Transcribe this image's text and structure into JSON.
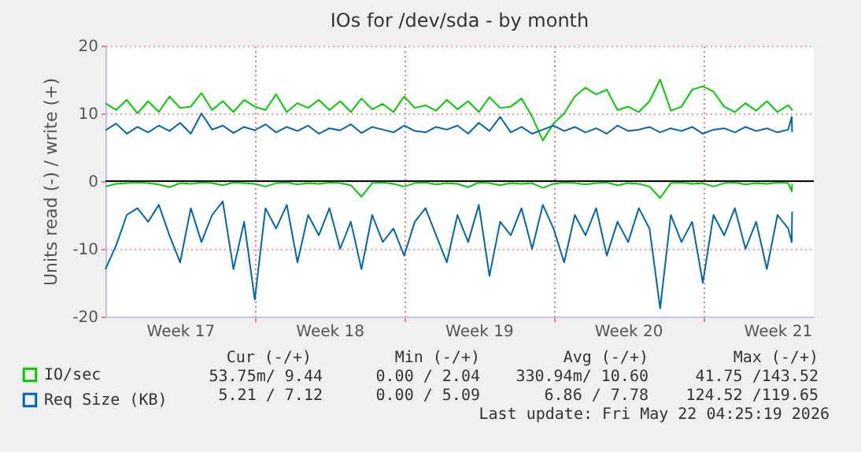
{
  "chart_data": {
    "type": "line",
    "title": "IOs for /dev/sda - by month",
    "ylabel": "Units read (-) / write (+)",
    "x": [
      "2026-04-20T00:00",
      "2026-04-20T12:00",
      "2026-04-21T00:00",
      "2026-04-21T12:00",
      "2026-04-22T00:00",
      "2026-04-22T12:00",
      "2026-04-23T00:00",
      "2026-04-23T12:00",
      "2026-04-24T00:00",
      "2026-04-24T12:00",
      "2026-04-25T00:00",
      "2026-04-25T12:00",
      "2026-04-26T00:00",
      "2026-04-26T12:00",
      "2026-04-27T00:00",
      "2026-04-27T12:00",
      "2026-04-28T00:00",
      "2026-04-28T12:00",
      "2026-04-29T00:00",
      "2026-04-29T12:00",
      "2026-04-30T00:00",
      "2026-04-30T12:00",
      "2026-05-01T00:00",
      "2026-05-01T12:00",
      "2026-05-02T00:00",
      "2026-05-02T12:00",
      "2026-05-03T00:00",
      "2026-05-03T12:00",
      "2026-05-04T00:00",
      "2026-05-04T12:00",
      "2026-05-05T00:00",
      "2026-05-05T12:00",
      "2026-05-06T00:00",
      "2026-05-06T12:00",
      "2026-05-07T00:00",
      "2026-05-07T12:00",
      "2026-05-08T00:00",
      "2026-05-08T12:00",
      "2026-05-09T00:00",
      "2026-05-09T12:00",
      "2026-05-10T00:00",
      "2026-05-10T12:00",
      "2026-05-11T00:00",
      "2026-05-11T12:00",
      "2026-05-12T00:00",
      "2026-05-12T12:00",
      "2026-05-13T00:00",
      "2026-05-13T12:00",
      "2026-05-14T00:00",
      "2026-05-14T12:00",
      "2026-05-15T00:00",
      "2026-05-15T12:00",
      "2026-05-16T00:00",
      "2026-05-16T12:00",
      "2026-05-17T00:00",
      "2026-05-17T12:00",
      "2026-05-18T00:00",
      "2026-05-18T12:00",
      "2026-05-19T00:00",
      "2026-05-19T12:00",
      "2026-05-20T00:00",
      "2026-05-20T12:00",
      "2026-05-21T00:00",
      "2026-05-21T12:00",
      "2026-05-22T00:00",
      "2026-05-22T04:00",
      "2026-05-22T04:25"
    ],
    "series": [
      {
        "name": "IO/sec",
        "color": "#00cc00",
        "values": [
          11.5,
          10.5,
          12,
          10,
          11.8,
          10.2,
          12.5,
          10.8,
          11,
          13,
          10.5,
          11.8,
          10.2,
          12,
          11,
          10.5,
          12.8,
          10.2,
          11.5,
          10.8,
          12,
          10.5,
          11.8,
          10.2,
          12.2,
          10.6,
          11.4,
          10.2,
          12.5,
          10.8,
          11.2,
          10.4,
          12,
          10.6,
          11.8,
          10.2,
          12.4,
          10.8,
          11,
          12.2,
          9.5,
          6,
          8.5,
          10,
          12.5,
          13.8,
          12.8,
          13.5,
          10.5,
          11,
          10.2,
          11.8,
          15,
          10.4,
          11,
          13.5,
          14,
          13.2,
          11,
          10.2,
          11.5,
          10.4,
          11.8,
          10.2,
          11.2,
          10.6,
          10.4
        ]
      },
      {
        "color": "#00cc00",
        "values": [
          -0.8,
          -0.4,
          -0.3,
          -0.2,
          -0.3,
          -0.5,
          -0.9,
          -0.3,
          -0.4,
          -0.2,
          -0.3,
          -0.6,
          -0.2,
          -0.3,
          -0.4,
          -0.8,
          -0.3,
          -0.2,
          -0.5,
          -0.3,
          -0.4,
          -0.2,
          -0.3,
          -0.6,
          -2.3,
          -0.3,
          -0.2,
          -0.4,
          -0.8,
          -0.3,
          -0.2,
          -0.5,
          -0.3,
          -0.4,
          -0.9,
          -0.2,
          -0.3,
          -0.6,
          -0.3,
          -0.4,
          -0.3,
          -1,
          -0.4,
          -0.2,
          -0.3,
          -0.5,
          -0.3,
          -0.2,
          -0.6,
          -0.3,
          -0.4,
          -0.8,
          -2.5,
          -0.3,
          -0.2,
          -0.4,
          -0.3,
          -0.8,
          -0.3,
          -0.2,
          -0.5,
          -0.3,
          -0.4,
          -0.2,
          -0.3,
          -1.5,
          -0.4
        ]
      },
      {
        "name": "Req Size (KB)",
        "color": "#0066b3",
        "values": [
          7.5,
          8.5,
          7,
          8,
          7.2,
          8.2,
          7.4,
          8.6,
          7,
          10,
          7.6,
          8.2,
          7.1,
          8,
          7.5,
          8.4,
          7.2,
          8,
          7.4,
          8.2,
          7,
          7.8,
          7.5,
          8.4,
          7.1,
          8,
          7.6,
          7.2,
          8.2,
          7.4,
          7.2,
          8,
          7.6,
          8.2,
          7,
          8.6,
          7.4,
          9.5,
          7.2,
          8,
          7,
          7.6,
          8.2,
          7.4,
          8,
          7.2,
          7.8,
          7,
          8.2,
          7.4,
          7.6,
          8,
          7.2,
          7.8,
          7.4,
          8,
          7,
          7.6,
          7.8,
          7.2,
          8,
          7.4,
          7.8,
          7.2,
          7.6,
          9.5,
          7.2
        ]
      },
      {
        "color": "#0066b3",
        "values": [
          -13,
          -9.5,
          -5,
          -4,
          -6,
          -3.5,
          -8,
          -12,
          -4,
          -9,
          -5,
          -3,
          -13,
          -6,
          -17.5,
          -4,
          -7,
          -3.5,
          -12,
          -5,
          -8,
          -4,
          -10,
          -6,
          -13,
          -5,
          -9,
          -7,
          -11,
          -6,
          -4,
          -8,
          -12,
          -5,
          -9,
          -3.5,
          -14,
          -6,
          -8,
          -4,
          -10,
          -3.5,
          -7,
          -12,
          -5,
          -8,
          -4,
          -11,
          -6,
          -9,
          -4,
          -7,
          -18.8,
          -5,
          -9,
          -6,
          -15,
          -5,
          -8,
          -4,
          -10,
          -6,
          -13,
          -5,
          -7,
          -9,
          -4.5
        ]
      }
    ],
    "xlim": [
      "2026-04-20T00:00",
      "2026-05-23T04:48"
    ],
    "xticks": [
      {
        "value": "2026-04-23T12:00",
        "label": "Week 17"
      },
      {
        "value": "2026-04-27T00:00",
        "label": null
      },
      {
        "value": "2026-04-30T12:00",
        "label": "Week 18"
      },
      {
        "value": "2026-05-04T00:00",
        "label": null
      },
      {
        "value": "2026-05-07T12:00",
        "label": "Week 19"
      },
      {
        "value": "2026-05-11T00:00",
        "label": null
      },
      {
        "value": "2026-05-14T12:00",
        "label": "Week 20"
      },
      {
        "value": "2026-05-18T00:00",
        "label": null
      },
      {
        "value": "2026-05-21T12:00",
        "label": "Week 21"
      }
    ],
    "ylim": [
      -20,
      20
    ],
    "yticks": [
      -20,
      -10,
      0,
      10,
      20
    ],
    "ref_lines": [
      {
        "axis": "y",
        "value": 0,
        "color": "#000000"
      }
    ],
    "grid": true,
    "legend": "bottom left",
    "marker": "none",
    "line_style": "solid",
    "annotations": [
      "Cur (-/+)",
      "Min (-/+)",
      "Avg (-/+)",
      "Max (-/+)",
      "53.75m/  9.44",
      "0.00 /  2.04",
      "330.94m/ 10.60",
      "41.75 /143.52",
      "5.21 /  7.12",
      "0.00 /  5.09",
      "6.86 /  7.78",
      "124.52 /119.65",
      "Last update: Fri May 22 04:25:19 2026"
    ]
  }
}
